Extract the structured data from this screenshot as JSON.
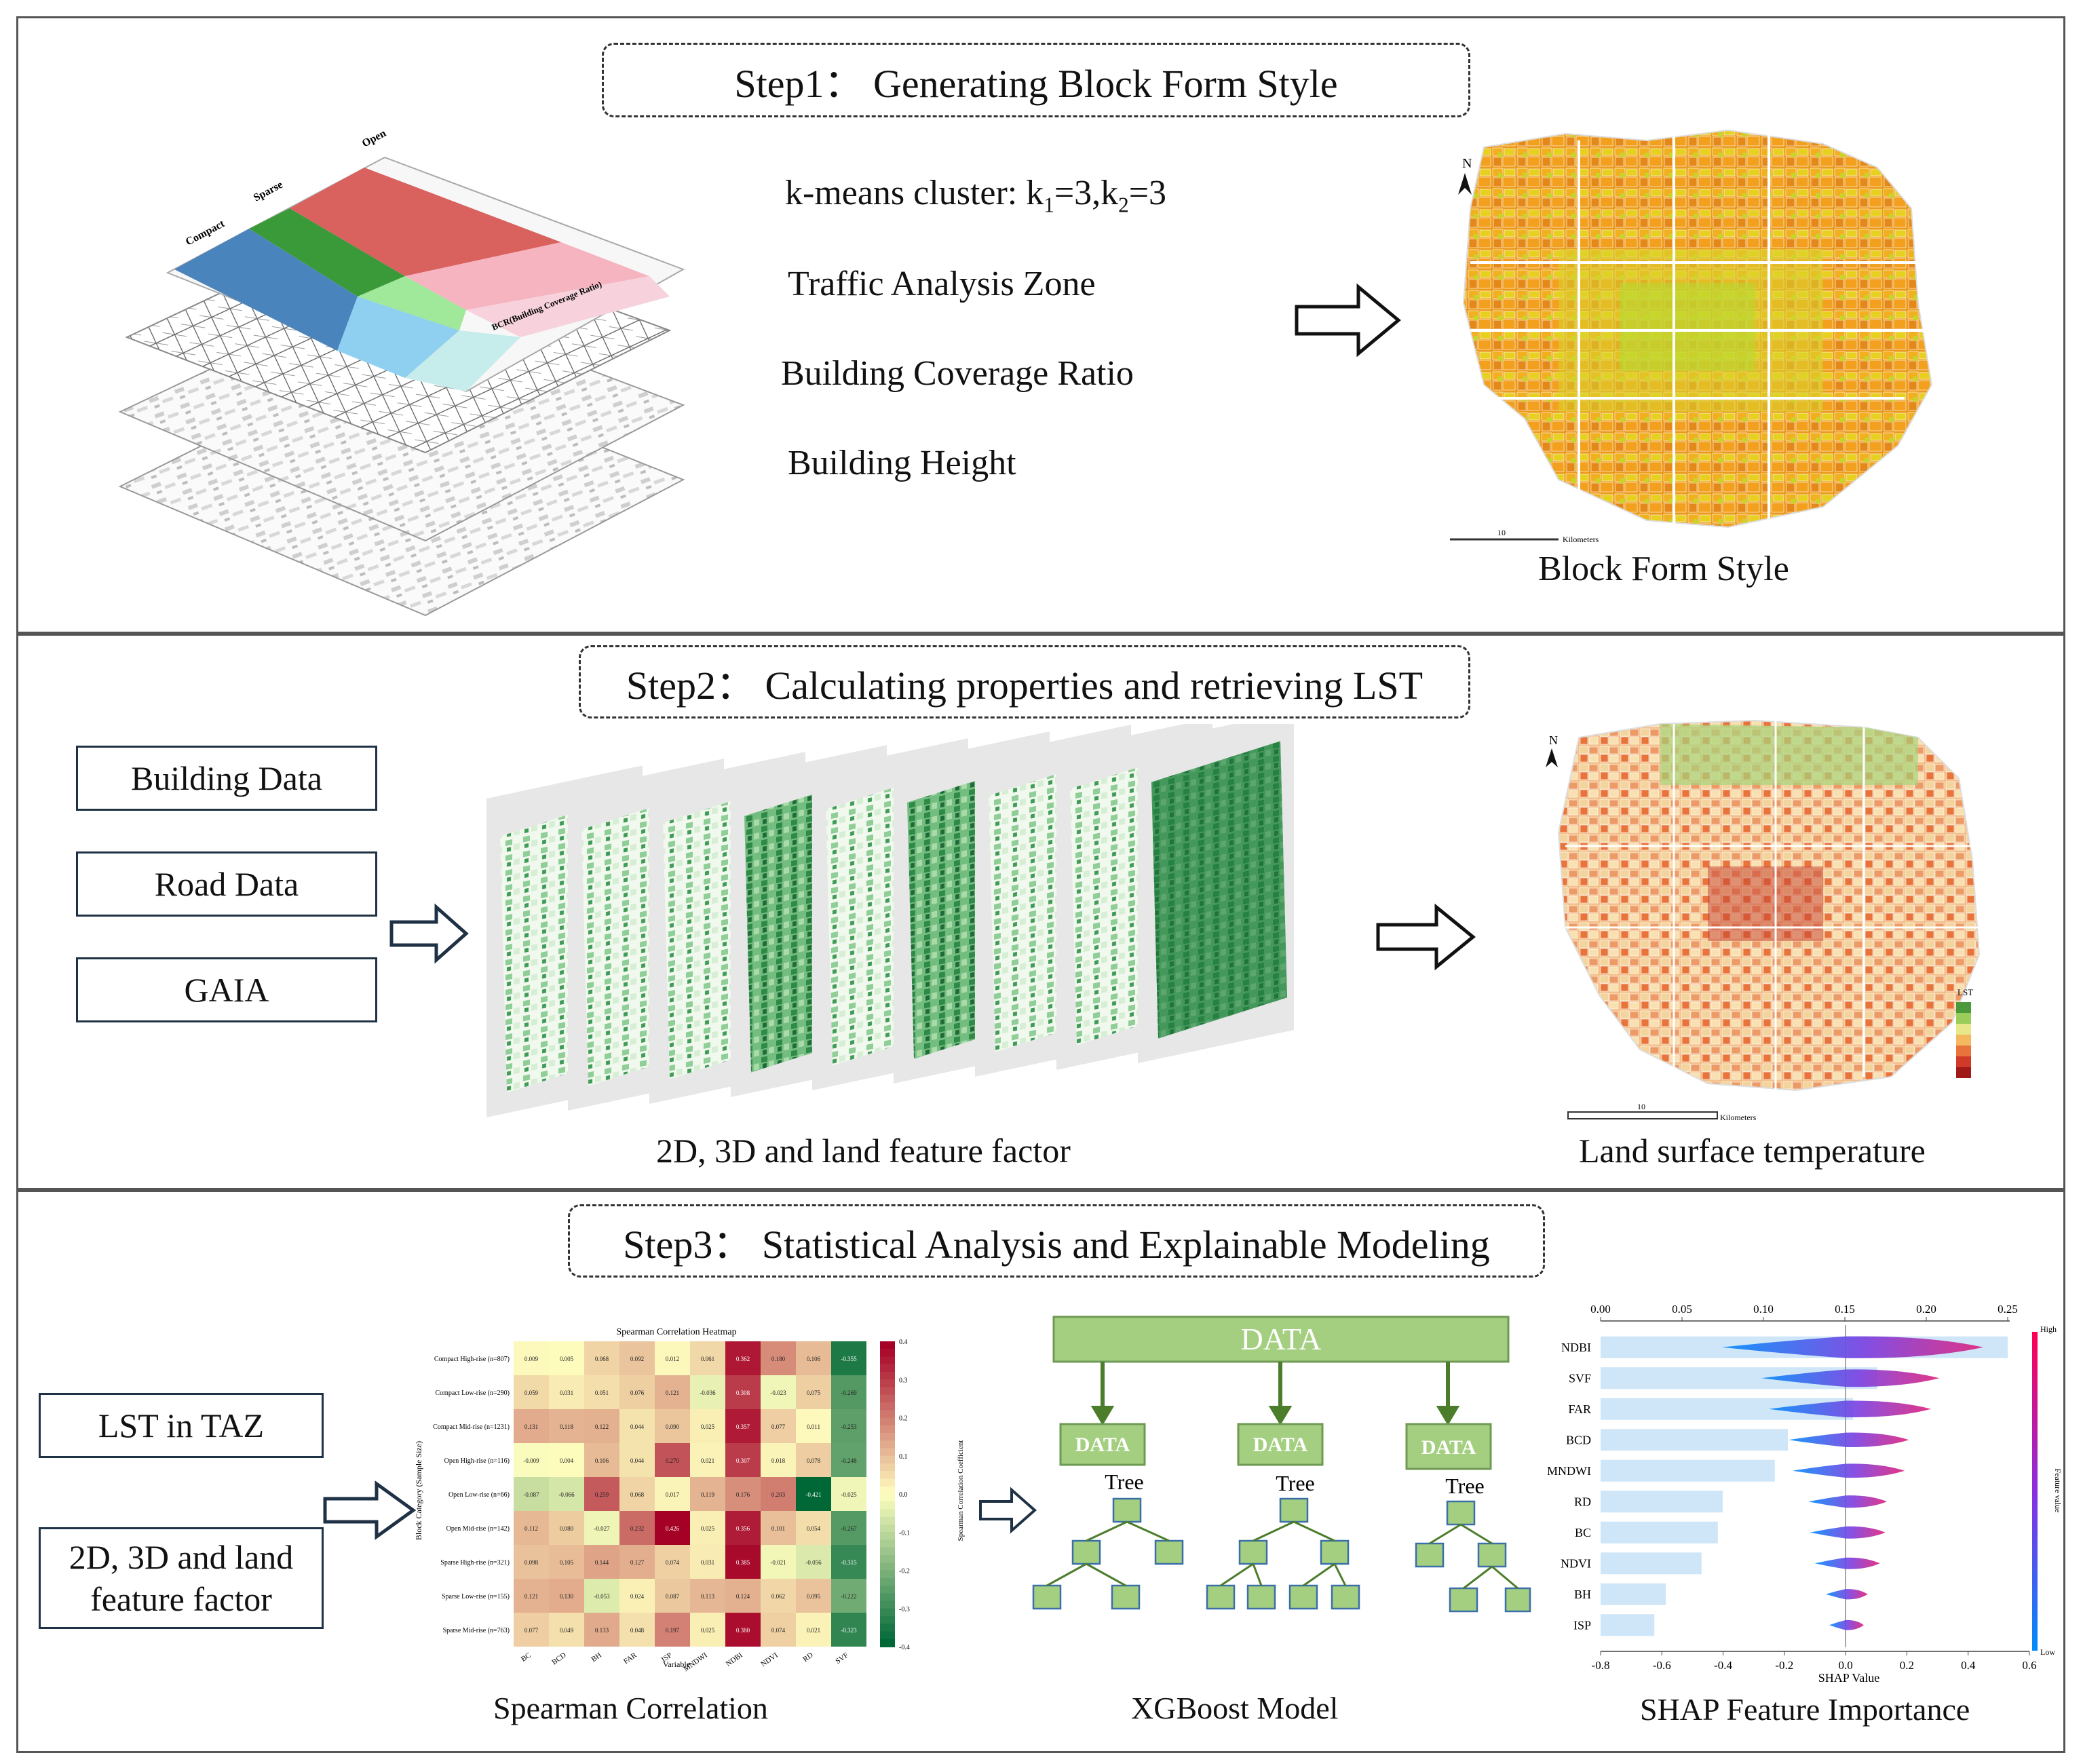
{
  "step1": {
    "title": "Step1： Generating Block Form Style",
    "kmeans_prefix": "k-means cluster: k",
    "k1_sub": "1",
    "k1_val": "=3,k",
    "k2_sub": "2",
    "k2_val": "=3",
    "list": [
      "Traffic Analysis Zone",
      "Building Coverage Ratio",
      "Building Height"
    ],
    "map_caption": "Block Form Style",
    "layer_labels": [
      "Compact",
      "Sparse",
      "Open"
    ],
    "layer_axis": "BCR(Building Coverage Ratio)",
    "scale_label": "10",
    "scale_unit": "Kilometers",
    "north": "N"
  },
  "step2": {
    "title": "Step2： Calculating properties and retrieving LST",
    "inputs": [
      "Building Data",
      "Road Data",
      "GAIA"
    ],
    "factor_caption": "2D, 3D and land feature factor",
    "map_caption": "Land surface temperature",
    "legend_title": "LST",
    "scale_label": "10",
    "scale_unit": "Kilometers",
    "north": "N",
    "colors": {
      "lst_scale": [
        "#4a9a3c",
        "#9acd5a",
        "#e8e88a",
        "#f4b860",
        "#e8743c",
        "#d03a28",
        "#a01818"
      ]
    }
  },
  "step3": {
    "title": "Step3： Statistical Analysis and Explainable Modeling",
    "inputs": [
      "LST in TAZ",
      "2D, 3D and land feature factor"
    ],
    "heatmap": {
      "title": "Spearman Correlation Heatmap",
      "ylabel": "Block Category (Sample Size)",
      "xlabel": "Variable",
      "cbar_label": "Spearman Correlation Coefficient",
      "cbar_ticks": [
        "0.4",
        "0.3",
        "0.2",
        "0.1",
        "0.0",
        "-0.1",
        "-0.2",
        "-0.3",
        "-0.4"
      ],
      "rows": [
        "Compact High-rise (n=807)",
        "Compact Low-rise (n=290)",
        "Compact Mid-rise (n=1231)",
        "Open High-rise (n=116)",
        "Open Low-rise (n=66)",
        "Open Mid-rise (n=142)",
        "Sparse High-rise (n=321)",
        "Sparse Low-rise (n=155)",
        "Sparse Mid-rise (n=763)"
      ],
      "cols": [
        "BC",
        "BCD",
        "BH",
        "FAR",
        "ISP",
        "MNDWI",
        "NDBI",
        "NDVI",
        "RD",
        "SVF"
      ],
      "values": [
        [
          0.009,
          0.005,
          0.068,
          0.092,
          0.012,
          0.061,
          0.362,
          0.18,
          0.106,
          -0.355
        ],
        [
          0.059,
          0.031,
          0.051,
          0.076,
          0.121,
          -0.036,
          0.308,
          -0.023,
          0.075,
          -0.269
        ],
        [
          0.131,
          0.118,
          0.122,
          0.044,
          0.09,
          0.025,
          0.357,
          0.077,
          0.011,
          -0.253
        ],
        [
          -0.009,
          0.004,
          0.106,
          0.044,
          0.27,
          0.021,
          0.307,
          0.018,
          0.078,
          -0.248
        ],
        [
          -0.087,
          -0.066,
          0.259,
          0.068,
          0.017,
          0.119,
          0.176,
          0.203,
          -0.421,
          -0.025
        ],
        [
          0.112,
          0.08,
          -0.027,
          0.232,
          0.426,
          0.025,
          0.356,
          0.101,
          0.054,
          -0.267
        ],
        [
          0.098,
          0.105,
          0.144,
          0.127,
          0.074,
          0.031,
          0.385,
          -0.021,
          -0.056,
          -0.315
        ],
        [
          0.121,
          0.13,
          -0.053,
          0.024,
          0.087,
          0.113,
          0.124,
          0.062,
          0.095,
          -0.222
        ],
        [
          0.077,
          0.049,
          0.133,
          0.048,
          0.197,
          0.025,
          0.38,
          0.074,
          0.021,
          -0.323
        ]
      ],
      "caption": "Spearman Correlation"
    },
    "xgb": {
      "data_top": "DATA",
      "data_small": [
        "DATA",
        "DATA",
        "DATA"
      ],
      "tree_label": "Tree",
      "caption": "XGBoost Model"
    },
    "shap": {
      "top_ticks": [
        "0.00",
        "0.05",
        "0.10",
        "0.15",
        "0.20",
        "0.25"
      ],
      "bottom_ticks": [
        "-0.8",
        "-0.6",
        "-0.4",
        "-0.2",
        "0.0",
        "0.2",
        "0.4",
        "0.6"
      ],
      "xlabel": "SHAP Value",
      "color_high": "High",
      "color_low": "Low",
      "color_label": "Feature value",
      "caption": "SHAP Feature Importance"
    },
    "chart_data": {
      "type": "bar",
      "title": "SHAP Feature Importance",
      "categories": [
        "NDBI",
        "SVF",
        "FAR",
        "BCD",
        "MNDWI",
        "RD",
        "BC",
        "NDVI",
        "BH",
        "ISP"
      ],
      "values": [
        0.25,
        0.17,
        0.155,
        0.115,
        0.107,
        0.075,
        0.072,
        0.062,
        0.04,
        0.033
      ],
      "xlabel": "SHAP Value",
      "xlim_importance": [
        0.0,
        0.25
      ],
      "xlim_shap": [
        -0.8,
        0.6
      ]
    }
  }
}
